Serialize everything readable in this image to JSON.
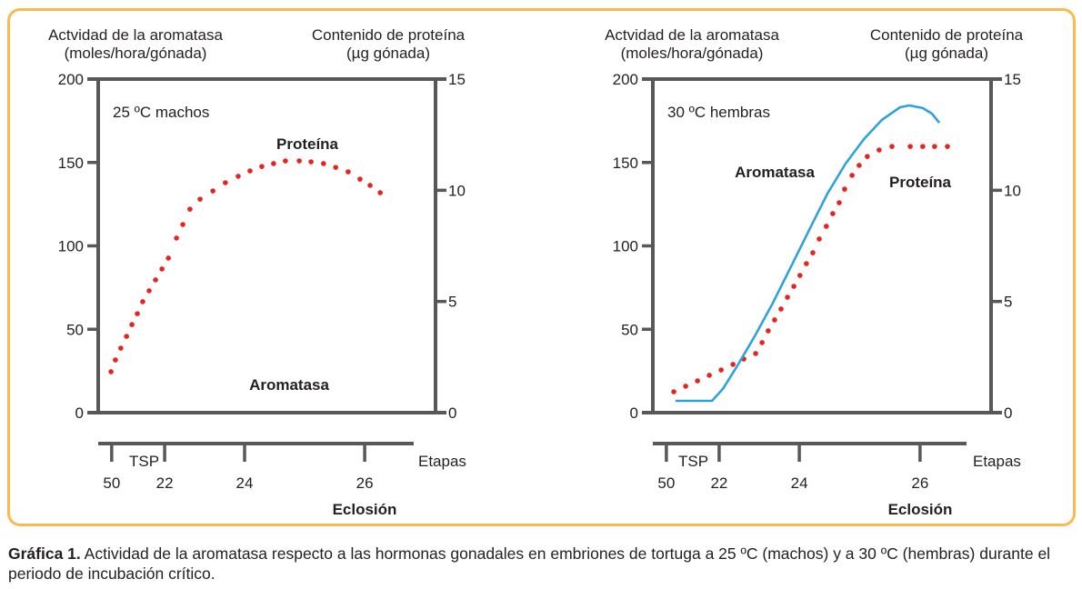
{
  "caption": {
    "label": "Gráfica 1.",
    "text": " Actividad de la aromatasa respecto a las hormonas gonadales en embriones de tortuga a 25 ºC (machos) y a 30 ºC (hembras) durante el periodo de incubación crítico."
  },
  "colors": {
    "frame": "#fbb94f",
    "protein": "#e52421",
    "aromatase": "#2fa2db",
    "axis": "#58585a"
  },
  "chart_data": [
    {
      "type": "line",
      "title": "25 ºC machos",
      "ylabel_left": [
        "Actvidad de la aromatasa",
        "(moles/hora/gónada)"
      ],
      "ylabel_right": [
        "Contenido de proteína",
        "(µg gónada)"
      ],
      "ylim_left": [
        0,
        200
      ],
      "yticks_left": [
        "0",
        "50",
        "100",
        "150",
        "200"
      ],
      "ylim_right": [
        0,
        15
      ],
      "yticks_right": [
        "0",
        "5",
        "10",
        "15"
      ],
      "xlabel": "Etapas",
      "x_note": "Eclosión",
      "x_bracket_label": "TSP",
      "xlim_percent_of_incubation": [
        0,
        100
      ],
      "xticks": [
        {
          "label": "50",
          "pos": 4.0
        },
        {
          "label": "22",
          "pos": 19.7
        },
        {
          "label": "24",
          "pos": 43.4
        },
        {
          "label": "26",
          "pos": 79.0
        }
      ],
      "annotations": {
        "protein": "Proteína",
        "aromatase": "Aromatasa"
      },
      "series": [
        {
          "name": "Proteína",
          "axis": "right",
          "style": "dotted",
          "x": [
            3.8,
            5.1,
            6.7,
            8.4,
            10.0,
            11.6,
            13.2,
            15.1,
            17.0,
            18.9,
            20.8,
            23.2,
            25.1,
            27.2,
            30.2,
            34.0,
            37.7,
            41.5,
            45.0,
            48.5,
            52.0,
            55.5,
            59.6,
            63.1,
            66.8,
            70.4,
            74.1,
            77.6,
            80.6,
            83.6
          ],
          "y": [
            1.84,
            2.37,
            2.9,
            3.43,
            3.96,
            4.45,
            4.99,
            5.48,
            5.97,
            6.46,
            6.95,
            7.85,
            8.46,
            9.15,
            9.6,
            9.97,
            10.34,
            10.63,
            10.87,
            11.07,
            11.2,
            11.32,
            11.32,
            11.28,
            11.2,
            11.03,
            10.83,
            10.5,
            10.22,
            9.89
          ]
        },
        {
          "name": "Aromatasa",
          "axis": "left",
          "style": "line",
          "x": [],
          "y": []
        }
      ]
    },
    {
      "type": "line",
      "title": "30 ºC hembras",
      "ylabel_left": [
        "Actvidad de la aromatasa",
        "(moles/hora/gónada)"
      ],
      "ylabel_right": [
        "Contenido de proteína",
        "(µg gónada)"
      ],
      "ylim_left": [
        0,
        200
      ],
      "yticks_left": [
        "0",
        "50",
        "100",
        "150",
        "200"
      ],
      "ylim_right": [
        0,
        15
      ],
      "yticks_right": [
        "0",
        "5",
        "10",
        "15"
      ],
      "xlabel": "Etapas",
      "x_note": "Eclosión",
      "x_bracket_label": "TSP",
      "xlim_percent_of_incubation": [
        0,
        100
      ],
      "xticks": [
        {
          "label": "50",
          "pos": 4.0
        },
        {
          "label": "22",
          "pos": 19.6
        },
        {
          "label": "24",
          "pos": 43.3
        },
        {
          "label": "26",
          "pos": 79.0
        }
      ],
      "annotations": {
        "protein": "Proteína",
        "aromatase": "Aromatasa"
      },
      "series": [
        {
          "name": "Proteína",
          "axis": "right",
          "style": "dotted",
          "x": [
            6.2,
            9.7,
            13.2,
            16.7,
            20.2,
            23.7,
            26.9,
            30.4,
            32.3,
            34.1,
            36.0,
            37.9,
            39.8,
            41.7,
            43.5,
            45.4,
            47.3,
            49.2,
            51.3,
            53.2,
            55.1,
            56.7,
            58.9,
            61.0,
            63.4,
            66.9,
            70.7,
            76.1,
            79.8,
            83.3,
            87.1
          ],
          "y": [
            0.94,
            1.19,
            1.43,
            1.68,
            1.92,
            2.17,
            2.41,
            2.66,
            3.15,
            3.68,
            4.17,
            4.66,
            5.19,
            5.68,
            6.17,
            6.7,
            7.19,
            7.81,
            8.38,
            8.95,
            9.44,
            10.05,
            10.67,
            11.12,
            11.52,
            11.81,
            11.97,
            11.97,
            11.97,
            11.97,
            11.97
          ]
        },
        {
          "name": "Aromatasa",
          "axis": "left",
          "style": "line",
          "x": [
            6.7,
            17.5,
            20.7,
            24.7,
            30.1,
            35.5,
            40.9,
            46.2,
            51.6,
            57.0,
            62.4,
            67.7,
            73.1,
            75.8,
            79.8,
            82.5,
            84.7
          ],
          "y": [
            7.1,
            7.1,
            14.2,
            27.2,
            45.8,
            65.9,
            87.7,
            109.5,
            131.3,
            149.3,
            164.0,
            175.5,
            183.1,
            184.2,
            182.6,
            179.3,
            173.8
          ]
        }
      ]
    }
  ]
}
